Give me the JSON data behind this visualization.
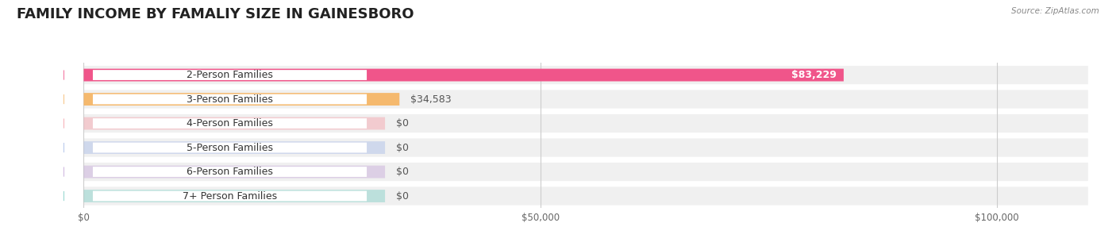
{
  "title": "FAMILY INCOME BY FAMALIY SIZE IN GAINESBORO",
  "source": "Source: ZipAtlas.com",
  "categories": [
    "2-Person Families",
    "3-Person Families",
    "4-Person Families",
    "5-Person Families",
    "6-Person Families",
    "7+ Person Families"
  ],
  "values": [
    83229,
    34583,
    0,
    0,
    0,
    0
  ],
  "bar_colors": [
    "#f0558a",
    "#f5b96e",
    "#f5a0a8",
    "#a8bce8",
    "#c4a8d8",
    "#7ecec4"
  ],
  "dot_colors": [
    "#f0558a",
    "#f5b96e",
    "#f5a0a8",
    "#a8bce8",
    "#c4a8d8",
    "#7ecec4"
  ],
  "background_color": "#ffffff",
  "xlim": [
    0,
    110000
  ],
  "xticks": [
    0,
    50000,
    100000
  ],
  "xtick_labels": [
    "$0",
    "$50,000",
    "$100,000"
  ],
  "title_fontsize": 13,
  "label_fontsize": 9,
  "value_labels": [
    "$83,229",
    "$34,583",
    "$0",
    "$0",
    "$0",
    "$0"
  ]
}
